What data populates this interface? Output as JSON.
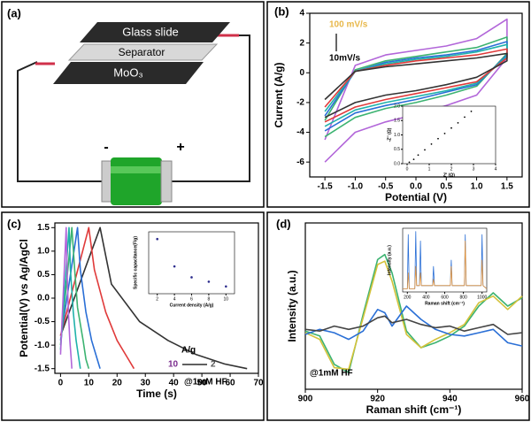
{
  "diagram": {
    "label": "(a)",
    "glass_slide": "Glass slide",
    "separator": "Separator",
    "moo3": "MoO₃",
    "minus": "-",
    "plus": "+"
  },
  "chart_data": [
    {
      "type": "line",
      "label": "(b)",
      "xlabel": "Potential (V)",
      "ylabel": "Current (A/g)",
      "xlim": [
        -1.75,
        1.75
      ],
      "xticks": [
        -1.5,
        {
          "value": -1,
          "label": "-1.0"
        },
        -0.5,
        {
          "value": 0,
          "label": "0.0"
        },
        0.5,
        {
          "value": 1,
          "label": "1.0"
        },
        1.5
      ],
      "ylim": [
        -7,
        4
      ],
      "yticks": [
        -6,
        -4,
        -2,
        0,
        2,
        4
      ],
      "annotations": [
        {
          "text": "100 mV/s",
          "color": "#e8b84a"
        },
        {
          "text": "10mV/s",
          "color": "#000000"
        }
      ],
      "x": [
        -1.5,
        -1,
        -0.5,
        0,
        0.5,
        1,
        1.5,
        1.5,
        1,
        0.5,
        0,
        -0.5,
        -1,
        -1.5
      ],
      "series": [
        {
          "color": "#b266d9",
          "values": [
            -4.5,
            0.5,
            1.2,
            1.5,
            1.8,
            2.3,
            3.6,
            1.0,
            -1.5,
            -2.2,
            -2.8,
            -3.3,
            -4.0,
            -6.0
          ]
        },
        {
          "color": "#3cb371",
          "values": [
            -3.2,
            0.2,
            0.8,
            1.1,
            1.4,
            1.7,
            2.4,
            1.3,
            -0.9,
            -1.5,
            -2.0,
            -2.4,
            -3.0,
            -4.3
          ]
        },
        {
          "color": "#2a6fd6",
          "values": [
            -2.9,
            0.1,
            0.7,
            1.0,
            1.2,
            1.5,
            2.1,
            1.2,
            -0.8,
            -1.3,
            -1.8,
            -2.2,
            -2.7,
            -3.9
          ]
        },
        {
          "color": "#20b2aa",
          "values": [
            -2.6,
            0.1,
            0.6,
            0.9,
            1.1,
            1.4,
            1.9,
            1.1,
            -0.7,
            -1.2,
            -1.6,
            -2.0,
            -2.5,
            -3.6
          ]
        },
        {
          "color": "#e03a3a",
          "values": [
            -2.3,
            0.1,
            0.5,
            0.8,
            1.0,
            1.2,
            1.6,
            1.0,
            -0.6,
            -1.0,
            -1.4,
            -1.8,
            -2.3,
            -3.3
          ]
        },
        {
          "color": "#333333",
          "values": [
            -1.8,
            0.1,
            0.4,
            0.6,
            0.8,
            1.0,
            1.3,
            0.8,
            -0.3,
            -0.8,
            -1.2,
            -1.5,
            -2.0,
            -3.0
          ]
        }
      ]
    },
    {
      "type": "scatter",
      "xlabel": "Z' (Ω)",
      "ylabel": "-Z'' (Ω)",
      "xlim": [
        -0.2,
        4
      ],
      "xticks": [
        0,
        1,
        2,
        3,
        4
      ],
      "ylim": [
        0,
        2
      ],
      "yticks": [
        {
          "value": 0,
          "label": "0.0"
        },
        0.5,
        {
          "value": 1,
          "label": "1.0"
        },
        1.5,
        {
          "value": 2,
          "label": "2.0"
        }
      ],
      "color": "#000000",
      "x": [
        0.1,
        0.3,
        0.5,
        0.8,
        1.1,
        1.4,
        1.7,
        2.0,
        2.3,
        2.6,
        2.9
      ],
      "values": [
        0.05,
        0.15,
        0.3,
        0.48,
        0.68,
        0.87,
        1.05,
        1.24,
        1.42,
        1.62,
        1.82
      ]
    },
    {
      "type": "line",
      "label": "(c)",
      "xlabel": "Time (s)",
      "ylabel": "Potential(V) vs Ag/AgCl",
      "xlim": [
        -2,
        70
      ],
      "xticks": [
        0,
        10,
        20,
        30,
        40,
        50,
        60,
        70
      ],
      "ylim": [
        -1.6,
        1.6
      ],
      "yticks": [
        -1.5,
        {
          "value": -1,
          "label": "-1.0"
        },
        -0.5,
        {
          "value": 0,
          "label": "0.0"
        },
        0.5,
        {
          "value": 1,
          "label": "1.0"
        },
        1.5
      ],
      "annotations": [
        {
          "text": "A/g",
          "color": "#000000"
        },
        {
          "text": "10",
          "color": "#7b2d8e"
        },
        {
          "text": "2",
          "color": "#555555"
        },
        {
          "text": "@1mM HF",
          "color": "#000000"
        }
      ],
      "series": [
        {
          "color": "#333333",
          "x": [
            0,
            14,
            18,
            28,
            38,
            48,
            58,
            66
          ],
          "values": [
            -0.8,
            1.5,
            0.3,
            -0.5,
            -0.9,
            -1.2,
            -1.4,
            -1.5
          ]
        },
        {
          "color": "#e03a3a",
          "x": [
            0,
            10,
            12,
            16,
            20,
            24,
            26
          ],
          "values": [
            -0.8,
            1.5,
            0.6,
            -0.3,
            -0.9,
            -1.3,
            -1.5
          ]
        },
        {
          "color": "#2a6fd6",
          "x": [
            0,
            6,
            7,
            9,
            11,
            13,
            14
          ],
          "values": [
            -0.9,
            1.5,
            0.6,
            -0.3,
            -0.9,
            -1.3,
            -1.5
          ]
        },
        {
          "color": "#3cb371",
          "x": [
            0,
            4,
            5,
            6,
            8,
            9,
            10
          ],
          "values": [
            -1.0,
            1.5,
            0.6,
            -0.2,
            -0.9,
            -1.3,
            -1.5
          ]
        },
        {
          "color": "#20b2aa",
          "x": [
            0,
            3,
            3.5,
            4.5,
            5.5,
            6.5,
            7
          ],
          "values": [
            -1.1,
            1.5,
            0.6,
            -0.3,
            -0.9,
            -1.3,
            -1.5
          ]
        },
        {
          "color": "#b266d9",
          "x": [
            0,
            2,
            2.3,
            2.8,
            3.3,
            3.8,
            4
          ],
          "values": [
            -1.2,
            1.5,
            0.6,
            -0.3,
            -0.9,
            -1.3,
            -1.5
          ]
        }
      ]
    },
    {
      "type": "scatter",
      "xlabel": "Current density (A/g)",
      "ylabel": "Specific capacitance(F/g)",
      "xlim": [
        1,
        11
      ],
      "xticks": [
        2,
        4,
        6,
        8,
        10
      ],
      "ylim": [
        2,
        19
      ],
      "color": "#2b2b8c",
      "x": [
        2,
        4,
        6,
        8,
        10
      ],
      "values": [
        17,
        9.5,
        6.5,
        5.3,
        4
      ]
    },
    {
      "type": "line",
      "label": "(d)",
      "xlabel": "Raman shift (cm⁻¹)",
      "ylabel": "Intensity (a.u.)",
      "xlim": [
        900,
        960
      ],
      "xticks": [
        900,
        920,
        940,
        960
      ],
      "ylim": [
        0,
        10
      ],
      "annotations": [
        {
          "text": "@1mM HF",
          "color": "#000000"
        }
      ],
      "x": [
        900,
        904,
        908,
        912,
        916,
        920,
        922,
        924,
        928,
        932,
        936,
        940,
        944,
        948,
        952,
        956,
        960
      ],
      "series": [
        {
          "color": "#3cb371",
          "values": [
            3.5,
            3.2,
            1.5,
            1.0,
            4.5,
            7.8,
            8.1,
            7.0,
            3.5,
            2.5,
            2.8,
            3.2,
            3.8,
            5.0,
            5.8,
            5.0,
            5.5
          ]
        },
        {
          "color": "#d4c23a",
          "values": [
            3.4,
            3.0,
            1.3,
            1.2,
            4.3,
            7.5,
            7.7,
            6.5,
            3.3,
            2.5,
            3.0,
            3.4,
            3.9,
            5.2,
            5.6,
            4.8,
            5.6
          ]
        },
        {
          "color": "#2a6fd6",
          "values": [
            3.3,
            3.6,
            3.4,
            3.0,
            3.5,
            4.8,
            4.6,
            3.8,
            5.0,
            4.2,
            3.6,
            3.3,
            3.2,
            3.4,
            3.6,
            2.8,
            2.6
          ]
        },
        {
          "color": "#444444",
          "values": [
            3.6,
            3.5,
            3.8,
            3.6,
            3.8,
            4.3,
            4.4,
            4.0,
            4.2,
            3.9,
            3.7,
            3.8,
            3.5,
            3.7,
            3.9,
            3.3,
            3.4
          ]
        }
      ]
    },
    {
      "type": "line",
      "xlabel": "Raman shift (cm⁻¹)",
      "ylabel": "Intensity (a.u.)",
      "xlim": [
        150,
        1050
      ],
      "xticks": [
        200,
        400,
        600,
        800,
        1000
      ],
      "ylim": [
        0,
        10
      ],
      "x": [
        150,
        200,
        210,
        220,
        280,
        290,
        300,
        330,
        340,
        350,
        470,
        480,
        490,
        660,
        670,
        680,
        810,
        820,
        830,
        990,
        1000,
        1010,
        1050
      ],
      "series": [
        {
          "color": "#2a6fd6",
          "values": [
            0.5,
            0.5,
            9,
            0.5,
            0.5,
            9.5,
            1,
            1,
            8,
            1,
            1,
            4,
            1,
            1,
            5,
            1,
            1,
            9,
            1,
            1,
            9,
            1,
            0.5
          ]
        },
        {
          "color": "#e8963a",
          "values": [
            0.5,
            0.5,
            3,
            0.5,
            0.5,
            4,
            1,
            1,
            3,
            1,
            1,
            2,
            1,
            1,
            4,
            1,
            1,
            8,
            1,
            1,
            5,
            1,
            0.5
          ]
        }
      ]
    }
  ]
}
